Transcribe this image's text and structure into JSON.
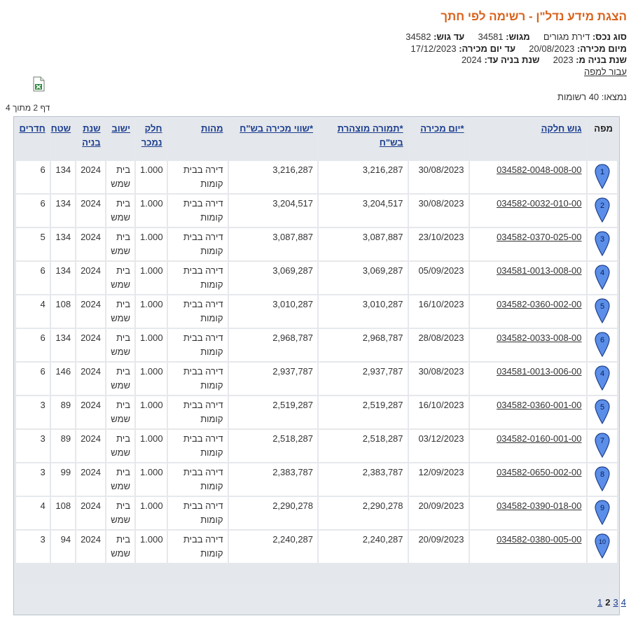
{
  "header": {
    "title": "הצגת מידע נדל\"ן - רשימה לפי חתך",
    "property_type_label": "סוג נכס:",
    "property_type_value": "דירת מגורים",
    "from_block_label": "מגוש:",
    "from_block_value": "34581",
    "to_block_label": "עד גוש:",
    "to_block_value": "34582",
    "from_date_label": "מיום מכירה:",
    "from_date_value": "20/08/2023",
    "to_date_label": "עד יום מכירה:",
    "to_date_value": "17/12/2023",
    "from_year_label": "שנת בניה מ:",
    "from_year_value": "2023",
    "to_year_label": "שנת בניה עד:",
    "to_year_value": "2024",
    "map_link": "עבור למפה"
  },
  "results": {
    "found_text": "נמצאו: 40 רשומות",
    "page_text": "דף 2 מתוך 4"
  },
  "icons": {
    "excel": "excel-icon",
    "marker": "map-marker-icon"
  },
  "colors": {
    "title": "#d9621b",
    "header_link": "#1a3d8f",
    "marker_fill": "#5b8ee8"
  },
  "table": {
    "columns": {
      "map": "מפה",
      "parcel": "גוש חלקה",
      "sale_date": "*יום מכירה",
      "declared_value": "*תמורה מוצהרת בש\"ח",
      "sale_value": "*שווי מכירה בש\"ח",
      "nature": "מהות",
      "portion": "חלק נמכר",
      "settlement": "ישוב",
      "build_year": "שנת בניה",
      "area": "שטח",
      "rooms": "חדרים"
    },
    "rows": [
      {
        "marker": "1",
        "parcel": "034582-0048-008-00",
        "date": "30/08/2023",
        "declared": "3,216,287",
        "value": "3,216,287",
        "nature": "דירה בבית קומות",
        "portion": "1.000",
        "settlement": "בית שמש",
        "year": "2024",
        "area": "134",
        "rooms": "6"
      },
      {
        "marker": "2",
        "parcel": "034582-0032-010-00",
        "date": "30/08/2023",
        "declared": "3,204,517",
        "value": "3,204,517",
        "nature": "דירה בבית קומות",
        "portion": "1.000",
        "settlement": "בית שמש",
        "year": "2024",
        "area": "134",
        "rooms": "6"
      },
      {
        "marker": "3",
        "parcel": "034582-0370-025-00",
        "date": "23/10/2023",
        "declared": "3,087,887",
        "value": "3,087,887",
        "nature": "דירה בבית קומות",
        "portion": "1.000",
        "settlement": "בית שמש",
        "year": "2024",
        "area": "134",
        "rooms": "5"
      },
      {
        "marker": "4",
        "parcel": "034581-0013-008-00",
        "date": "05/09/2023",
        "declared": "3,069,287",
        "value": "3,069,287",
        "nature": "דירה בבית קומות",
        "portion": "1.000",
        "settlement": "בית שמש",
        "year": "2024",
        "area": "134",
        "rooms": "6"
      },
      {
        "marker": "5",
        "parcel": "034582-0360-002-00",
        "date": "16/10/2023",
        "declared": "3,010,287",
        "value": "3,010,287",
        "nature": "דירה בבית קומות",
        "portion": "1.000",
        "settlement": "בית שמש",
        "year": "2024",
        "area": "108",
        "rooms": "4"
      },
      {
        "marker": "6",
        "parcel": "034582-0033-008-00",
        "date": "28/08/2023",
        "declared": "2,968,787",
        "value": "2,968,787",
        "nature": "דירה בבית קומות",
        "portion": "1.000",
        "settlement": "בית שמש",
        "year": "2024",
        "area": "134",
        "rooms": "6"
      },
      {
        "marker": "4",
        "parcel": "034581-0013-006-00",
        "date": "30/08/2023",
        "declared": "2,937,787",
        "value": "2,937,787",
        "nature": "דירה בבית קומות",
        "portion": "1.000",
        "settlement": "בית שמש",
        "year": "2024",
        "area": "146",
        "rooms": "6"
      },
      {
        "marker": "5",
        "parcel": "034582-0360-001-00",
        "date": "16/10/2023",
        "declared": "2,519,287",
        "value": "2,519,287",
        "nature": "דירה בבית קומות",
        "portion": "1.000",
        "settlement": "בית שמש",
        "year": "2024",
        "area": "89",
        "rooms": "3"
      },
      {
        "marker": "7",
        "parcel": "034582-0160-001-00",
        "date": "03/12/2023",
        "declared": "2,518,287",
        "value": "2,518,287",
        "nature": "דירה בבית קומות",
        "portion": "1.000",
        "settlement": "בית שמש",
        "year": "2024",
        "area": "89",
        "rooms": "3"
      },
      {
        "marker": "8",
        "parcel": "034582-0650-002-00",
        "date": "12/09/2023",
        "declared": "2,383,787",
        "value": "2,383,787",
        "nature": "דירה בבית קומות",
        "portion": "1.000",
        "settlement": "בית שמש",
        "year": "2024",
        "area": "99",
        "rooms": "3"
      },
      {
        "marker": "9",
        "parcel": "034582-0390-018-00",
        "date": "20/09/2023",
        "declared": "2,290,278",
        "value": "2,290,278",
        "nature": "דירה בבית קומות",
        "portion": "1.000",
        "settlement": "בית שמש",
        "year": "2024",
        "area": "108",
        "rooms": "4"
      },
      {
        "marker": "10",
        "parcel": "034582-0380-005-00",
        "date": "20/09/2023",
        "declared": "2,240,287",
        "value": "2,240,287",
        "nature": "דירה בבית קומות",
        "portion": "1.000",
        "settlement": "בית שמש",
        "year": "2024",
        "area": "94",
        "rooms": "3"
      }
    ]
  },
  "pager": {
    "pages": [
      "1",
      "2",
      "3",
      "4"
    ],
    "current": "2"
  }
}
